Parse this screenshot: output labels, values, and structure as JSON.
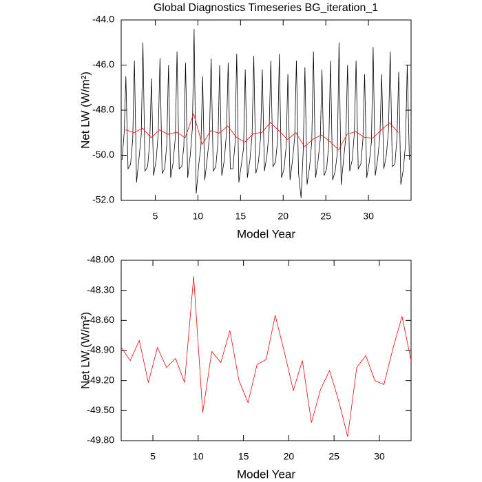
{
  "chart_data": [
    {
      "type": "line",
      "title": "Global Diagnostics Timeseries BG_iteration_1",
      "x_label": "Model Year",
      "y_label": "Net LW (W/m²)",
      "xlim": [
        1,
        35
      ],
      "ylim": [
        -52,
        -44
      ],
      "xticks": [
        5,
        10,
        15,
        20,
        25,
        30
      ],
      "yticks": [
        {
          "value": -52,
          "label": "-52.0"
        },
        {
          "value": -50,
          "label": "-50.0"
        },
        {
          "value": -48,
          "label": "-48.0"
        },
        {
          "value": -46,
          "label": "-46.0"
        },
        {
          "value": -44,
          "label": "-44.0"
        }
      ],
      "series": [
        {
          "color": "#000000",
          "x": [
            1.1,
            1.35,
            1.55,
            1.8,
            2.1,
            2.35,
            2.55,
            2.8,
            3.1,
            3.35,
            3.55,
            3.8,
            4.1,
            4.35,
            4.55,
            4.8,
            5.1,
            5.35,
            5.55,
            5.8,
            6.1,
            6.35,
            6.55,
            6.8,
            7.1,
            7.35,
            7.55,
            7.8,
            8.1,
            8.35,
            8.55,
            8.8,
            9.1,
            9.35,
            9.55,
            9.8,
            10.1,
            10.35,
            10.55,
            10.8,
            11.1,
            11.35,
            11.55,
            11.8,
            12.1,
            12.35,
            12.55,
            12.8,
            13.1,
            13.35,
            13.55,
            13.8,
            14.1,
            14.35,
            14.55,
            14.8,
            15.1,
            15.35,
            15.55,
            15.8,
            16.1,
            16.35,
            16.55,
            16.8,
            17.1,
            17.35,
            17.55,
            17.8,
            18.1,
            18.35,
            18.55,
            18.8,
            19.1,
            19.35,
            19.55,
            19.8,
            20.1,
            20.35,
            20.55,
            20.8,
            21.1,
            21.35,
            21.55,
            21.8,
            22.1,
            22.35,
            22.55,
            22.8,
            23.1,
            23.35,
            23.55,
            23.8,
            24.1,
            24.35,
            24.55,
            24.8,
            25.1,
            25.35,
            25.55,
            25.8,
            26.1,
            26.35,
            26.55,
            26.8,
            27.1,
            27.35,
            27.55,
            27.8,
            28.1,
            28.35,
            28.55,
            28.8,
            29.1,
            29.35,
            29.55,
            29.8,
            30.1,
            30.35,
            30.55,
            30.8,
            31.1,
            31.35,
            31.55,
            31.8,
            32.1,
            32.35,
            32.55,
            32.8,
            33.1,
            33.35,
            33.55,
            33.8,
            34.1,
            34.35,
            34.55,
            34.8
          ],
          "values": [
            -50.2,
            -49.0,
            -46.5,
            -50.6,
            -50.4,
            -49.3,
            -45.8,
            -51.2,
            -50.1,
            -49.1,
            -45.0,
            -50.7,
            -50.5,
            -49.4,
            -46.6,
            -50.9,
            -50.2,
            -49.0,
            -45.7,
            -50.8,
            -50.6,
            -49.5,
            -46.0,
            -51.0,
            -50.3,
            -49.2,
            -45.4,
            -50.6,
            -50.5,
            -49.6,
            -45.9,
            -51.0,
            -50.0,
            -48.8,
            -44.4,
            -51.7,
            -50.4,
            -49.6,
            -46.5,
            -51.1,
            -50.1,
            -49.2,
            -45.7,
            -50.7,
            -50.5,
            -49.4,
            -46.0,
            -50.9,
            -50.2,
            -49.0,
            -45.9,
            -50.6,
            -50.6,
            -49.5,
            -45.5,
            -51.2,
            -50.4,
            -49.7,
            -46.2,
            -51.0,
            -50.2,
            -49.1,
            -45.6,
            -50.8,
            -50.3,
            -49.2,
            -46.2,
            -50.7,
            -50.0,
            -48.9,
            -45.8,
            -50.5,
            -50.3,
            -49.3,
            -45.5,
            -51.0,
            -50.6,
            -49.6,
            -46.4,
            -51.1,
            -50.2,
            -49.2,
            -45.8,
            -50.8,
            -51.9,
            -49.8,
            -46.1,
            -51.3,
            -50.5,
            -49.4,
            -45.4,
            -51.0,
            -50.2,
            -49.3,
            -46.2,
            -50.9,
            -50.6,
            -49.5,
            -45.8,
            -51.1,
            -50.7,
            -49.9,
            -45.0,
            -51.3,
            -50.1,
            -49.2,
            -46.0,
            -50.7,
            -50.2,
            -49.0,
            -45.8,
            -50.6,
            -50.4,
            -49.3,
            -46.4,
            -51.0,
            -50.3,
            -49.4,
            -45.2,
            -50.9,
            -50.1,
            -49.1,
            -46.4,
            -50.6,
            -50.0,
            -48.9,
            -45.4,
            -50.5,
            -50.4,
            -49.2,
            -46.3,
            -51.3,
            -50.6,
            -49.5,
            -46.0,
            -50.2
          ]
        },
        {
          "color": "#ff0000",
          "x": [
            1.5,
            2.5,
            3.5,
            4.5,
            5.5,
            6.5,
            7.5,
            8.5,
            9.5,
            10.5,
            11.5,
            12.5,
            13.5,
            14.5,
            15.5,
            16.5,
            17.5,
            18.5,
            19.5,
            20.5,
            21.5,
            22.5,
            23.5,
            24.5,
            25.5,
            26.5,
            27.5,
            28.5,
            29.5,
            30.5,
            31.5,
            32.5,
            33.5
          ],
          "values": [
            -48.87,
            -49.0,
            -48.8,
            -49.22,
            -48.87,
            -49.07,
            -48.98,
            -49.22,
            -48.16,
            -49.52,
            -48.91,
            -49.02,
            -48.7,
            -49.2,
            -49.42,
            -49.04,
            -48.99,
            -48.55,
            -48.91,
            -49.3,
            -49.0,
            -49.62,
            -49.29,
            -49.1,
            -49.4,
            -49.76,
            -49.07,
            -48.95,
            -49.2,
            -49.24,
            -48.88,
            -48.56,
            -49.0
          ]
        }
      ]
    },
    {
      "type": "line",
      "x_label": "Model Year",
      "y_label": "Net LW (W/m²)",
      "xlim": [
        1.5,
        33.5
      ],
      "ylim": [
        -49.8,
        -48
      ],
      "xticks": [
        5,
        10,
        15,
        20,
        25,
        30
      ],
      "yticks": [
        {
          "value": -49.8,
          "label": "-49.80"
        },
        {
          "value": -49.5,
          "label": "-49.50"
        },
        {
          "value": -49.2,
          "label": "-49.20"
        },
        {
          "value": -48.9,
          "label": "-48.90"
        },
        {
          "value": -48.6,
          "label": "-48.60"
        },
        {
          "value": -48.3,
          "label": "-48.30"
        },
        {
          "value": -48,
          "label": "-48.00"
        }
      ],
      "series": [
        {
          "color": "#ff0000",
          "x": [
            1.5,
            2.5,
            3.5,
            4.5,
            5.5,
            6.5,
            7.5,
            8.5,
            9.5,
            10.5,
            11.5,
            12.5,
            13.5,
            14.5,
            15.5,
            16.5,
            17.5,
            18.5,
            19.5,
            20.5,
            21.5,
            22.5,
            23.5,
            24.5,
            25.5,
            26.5,
            27.5,
            28.5,
            29.5,
            30.5,
            31.5,
            32.5,
            33.5
          ],
          "values": [
            -48.87,
            -49.0,
            -48.8,
            -49.22,
            -48.87,
            -49.07,
            -48.98,
            -49.22,
            -48.16,
            -49.52,
            -48.91,
            -49.02,
            -48.7,
            -49.2,
            -49.42,
            -49.04,
            -48.99,
            -48.55,
            -48.91,
            -49.3,
            -49.0,
            -49.62,
            -49.29,
            -49.1,
            -49.4,
            -49.76,
            -49.07,
            -48.95,
            -49.2,
            -49.24,
            -48.88,
            -48.56,
            -49.0
          ]
        }
      ]
    }
  ]
}
